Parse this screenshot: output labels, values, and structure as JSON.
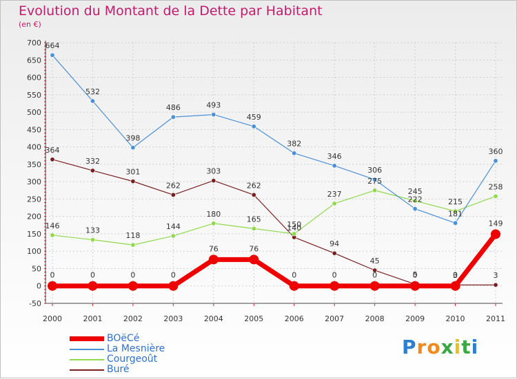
{
  "header": {
    "title": "Evolution du Montant de la Dette par Habitant",
    "subtitle": "(en €)"
  },
  "chart_data": {
    "type": "line",
    "title": "Evolution du Montant de la Dette par Habitant",
    "subtitle": "(en €)",
    "xlabel": "",
    "ylabel": "",
    "x": [
      "2000",
      "2001",
      "2002",
      "2003",
      "2004",
      "2005",
      "2006",
      "2007",
      "2008",
      "2009",
      "2010",
      "2011"
    ],
    "ylim": [
      -50,
      700
    ],
    "yticks": [
      -50,
      0,
      50,
      100,
      150,
      200,
      250,
      300,
      350,
      400,
      450,
      500,
      550,
      600,
      650,
      700
    ],
    "grid": true,
    "legend_position": "bottom-left",
    "series": [
      {
        "name": "BOëCé",
        "color": "#ee0000",
        "values": [
          0,
          0,
          0,
          0,
          76,
          76,
          0,
          0,
          0,
          0,
          0,
          149
        ]
      },
      {
        "name": "La Mesnière",
        "color": "#4a90d9",
        "values": [
          664,
          532,
          398,
          486,
          493,
          459,
          382,
          346,
          306,
          222,
          181,
          360
        ]
      },
      {
        "name": "Courgeoût",
        "color": "#8fd94a",
        "values": [
          146,
          133,
          118,
          144,
          180,
          165,
          150,
          237,
          275,
          245,
          215,
          258
        ]
      },
      {
        "name": "Buré",
        "color": "#7a1f1f",
        "values": [
          364,
          332,
          301,
          262,
          303,
          262,
          140,
          94,
          45,
          5,
          3,
          3
        ]
      }
    ],
    "data_labels": [
      [
        "0",
        "0",
        "0",
        "0",
        "76",
        "76",
        "0",
        "0",
        "0",
        "0",
        "0",
        "149"
      ],
      [
        "664",
        "532",
        "398",
        "486",
        "493",
        "459",
        "382",
        "346",
        "306",
        "222",
        "181",
        "360"
      ],
      [
        "146",
        "133",
        "118",
        "144",
        "180",
        "165",
        "150",
        "237",
        "275",
        "245",
        "215",
        "258"
      ],
      [
        "364",
        "332",
        "301",
        "262",
        "303",
        "262",
        "140",
        "94",
        "45",
        "5",
        "3",
        "3"
      ]
    ]
  },
  "logo": {
    "letters": [
      "P",
      "r",
      "o",
      "x",
      "i",
      "t",
      "i"
    ],
    "colors": [
      "#2d7fd3",
      "#f08a1c",
      "#f08a1c",
      "#3aa845",
      "#e8c21a",
      "#3aa845",
      "#2d7fd3"
    ]
  }
}
